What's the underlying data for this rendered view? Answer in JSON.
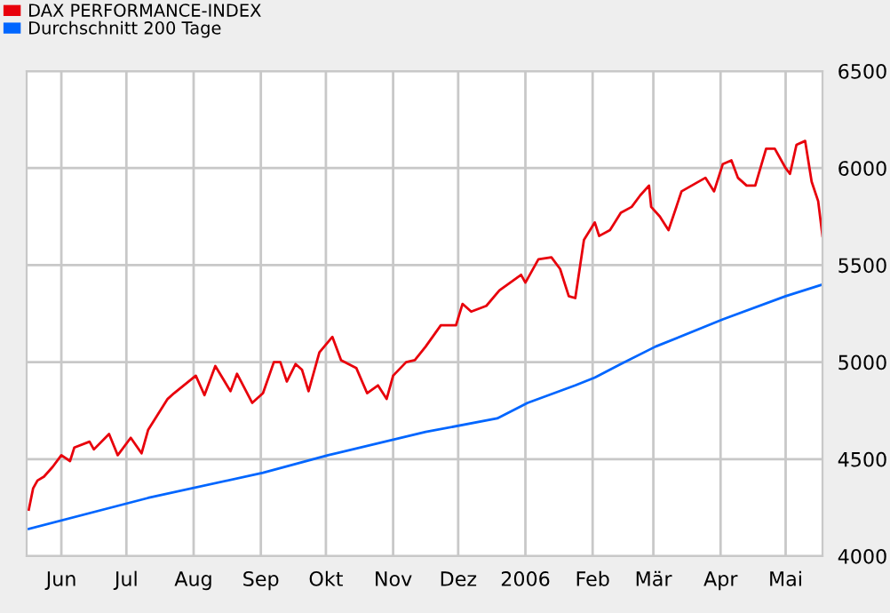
{
  "chart_data": {
    "type": "line",
    "xlim": [
      "2005-05-16",
      "2006-05-18"
    ],
    "xticks": [
      {
        "value": "2005-06-01",
        "label": "Jun"
      },
      {
        "value": "2005-07-01",
        "label": "Jul"
      },
      {
        "value": "2005-08-01",
        "label": "Aug"
      },
      {
        "value": "2005-09-01",
        "label": "Sep"
      },
      {
        "value": "2005-10-01",
        "label": "Okt"
      },
      {
        "value": "2005-11-01",
        "label": "Nov"
      },
      {
        "value": "2005-12-01",
        "label": "Dez"
      },
      {
        "value": "2006-01-01",
        "label": "2006"
      },
      {
        "value": "2006-02-01",
        "label": "Feb"
      },
      {
        "value": "2006-03-01",
        "label": "Mär"
      },
      {
        "value": "2006-04-01",
        "label": "Apr"
      },
      {
        "value": "2006-05-01",
        "label": "Mai"
      }
    ],
    "ylim": [
      4000,
      6500
    ],
    "yticks": [
      4000,
      4500,
      5000,
      5500,
      6000,
      6500
    ],
    "grid": true,
    "legend": "top left",
    "series": [
      {
        "name": "DAX PERFORMANCE-INDEX",
        "color": "#e8000b",
        "x": [
          "2005-05-17",
          "2005-05-19",
          "2005-05-21",
          "2005-05-24",
          "2005-05-28",
          "2005-06-01",
          "2005-06-05",
          "2005-06-07",
          "2005-06-14",
          "2005-06-16",
          "2005-06-23",
          "2005-06-27",
          "2005-07-03",
          "2005-07-08",
          "2005-07-11",
          "2005-07-20",
          "2005-07-23",
          "2005-08-02",
          "2005-08-06",
          "2005-08-11",
          "2005-08-18",
          "2005-08-21",
          "2005-08-28",
          "2005-09-02",
          "2005-09-07",
          "2005-09-10",
          "2005-09-13",
          "2005-09-17",
          "2005-09-20",
          "2005-09-23",
          "2005-09-28",
          "2005-10-04",
          "2005-10-08",
          "2005-10-15",
          "2005-10-20",
          "2005-10-25",
          "2005-10-29",
          "2005-11-01",
          "2005-11-07",
          "2005-11-11",
          "2005-11-16",
          "2005-11-23",
          "2005-11-30",
          "2005-12-03",
          "2005-12-07",
          "2005-12-14",
          "2005-12-20",
          "2005-12-30",
          "2006-01-01",
          "2006-01-07",
          "2006-01-13",
          "2006-01-17",
          "2006-01-21",
          "2006-01-24",
          "2006-01-28",
          "2006-02-02",
          "2006-02-04",
          "2006-02-09",
          "2006-02-14",
          "2006-02-19",
          "2006-02-23",
          "2006-02-27",
          "2006-02-28",
          "2006-03-04",
          "2006-03-08",
          "2006-03-14",
          "2006-03-25",
          "2006-03-29",
          "2006-04-02",
          "2006-04-06",
          "2006-04-09",
          "2006-04-13",
          "2006-04-17",
          "2006-04-22",
          "2006-04-26",
          "2006-05-01",
          "2006-05-03",
          "2006-05-06",
          "2006-05-10",
          "2006-05-13",
          "2006-05-16",
          "2006-05-18"
        ],
        "values": [
          4240,
          4350,
          4390,
          4410,
          4460,
          4520,
          4490,
          4560,
          4590,
          4550,
          4630,
          4520,
          4610,
          4530,
          4650,
          4810,
          4840,
          4930,
          4830,
          4980,
          4850,
          4940,
          4790,
          4840,
          5000,
          5000,
          4900,
          4990,
          4960,
          4850,
          5050,
          5130,
          5010,
          4970,
          4840,
          4880,
          4810,
          4930,
          5000,
          5010,
          5080,
          5190,
          5190,
          5300,
          5260,
          5290,
          5370,
          5450,
          5410,
          5530,
          5540,
          5480,
          5340,
          5330,
          5630,
          5720,
          5650,
          5680,
          5770,
          5800,
          5860,
          5910,
          5800,
          5750,
          5680,
          5880,
          5950,
          5880,
          6020,
          6040,
          5950,
          5910,
          5910,
          6100,
          6100,
          6000,
          5970,
          6120,
          6140,
          5930,
          5830,
          5650
        ]
      },
      {
        "name": "Durchschnitt 200 Tage",
        "color": "#0066ff",
        "x": [
          "2005-05-17",
          "2005-07-11",
          "2005-09-02",
          "2005-10-02",
          "2005-11-16",
          "2005-12-19",
          "2006-01-02",
          "2006-01-24",
          "2006-02-02",
          "2006-02-14",
          "2006-03-02",
          "2006-04-02",
          "2006-05-01",
          "2006-05-18"
        ],
        "values": [
          4140,
          4300,
          4430,
          4520,
          4640,
          4710,
          4790,
          4880,
          4920,
          4990,
          5080,
          5220,
          5340,
          5400
        ]
      }
    ]
  }
}
